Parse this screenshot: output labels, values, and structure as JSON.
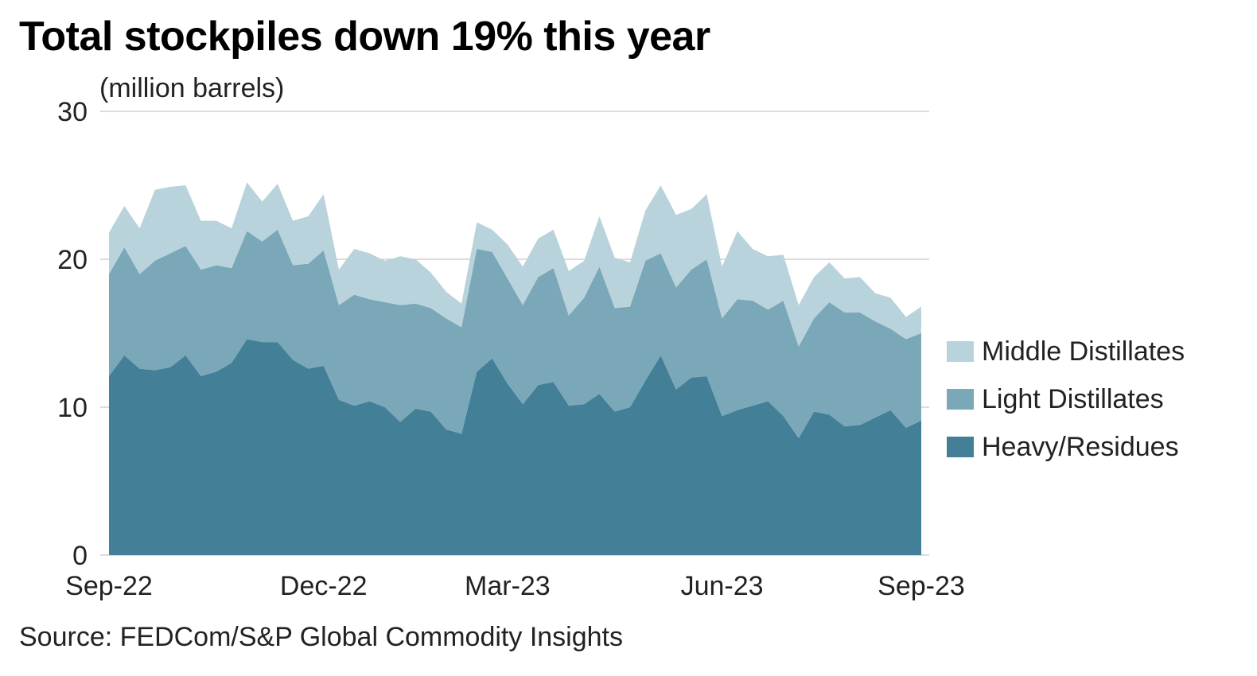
{
  "title": "Total stockpiles down 19% this year",
  "unit_label": "(million barrels)",
  "source": "Source: FEDCom/S&P Global Commodity Insights",
  "colors": {
    "heavy": "#437f96",
    "light": "#7aa8b8",
    "middle": "#b9d3dc",
    "grid": "#d0d0d0"
  },
  "chart_data": {
    "type": "area",
    "stacked": true,
    "title": "Total stockpiles down 19% this year",
    "ylabel": "(million barrels)",
    "ylim": [
      0,
      30
    ],
    "yticks": [
      0,
      10,
      20,
      30
    ],
    "xtick_labels": [
      {
        "label": "Sep-22",
        "index": 0
      },
      {
        "label": "Dec-22",
        "index": 14
      },
      {
        "label": "Mar-23",
        "index": 26
      },
      {
        "label": "Jun-23",
        "index": 40
      },
      {
        "label": "Sep-23",
        "index": 53
      }
    ],
    "legend_position": "right",
    "series": [
      {
        "name": "Heavy/Residues",
        "key": "heavy",
        "values": [
          12.1,
          13.5,
          12.6,
          12.5,
          12.7,
          13.5,
          12.1,
          12.4,
          13.0,
          14.6,
          14.4,
          14.4,
          13.2,
          12.6,
          12.8,
          10.5,
          10.1,
          10.4,
          10.0,
          9.0,
          9.9,
          9.7,
          8.5,
          8.2,
          12.4,
          13.3,
          11.6,
          10.2,
          11.5,
          11.7,
          10.1,
          10.2,
          10.9,
          9.7,
          10.0,
          11.8,
          13.5,
          11.2,
          12.0,
          12.1,
          9.4,
          9.8,
          10.1,
          10.4,
          9.4,
          7.9,
          9.7,
          9.5,
          8.7,
          8.8,
          9.3,
          9.8,
          8.6,
          9.1
        ]
      },
      {
        "name": "Light Distillates",
        "key": "light",
        "values": [
          6.9,
          7.3,
          6.4,
          7.4,
          7.7,
          7.4,
          7.2,
          7.2,
          6.4,
          7.3,
          6.8,
          7.6,
          6.4,
          7.1,
          7.8,
          6.4,
          7.5,
          6.9,
          7.1,
          7.9,
          7.1,
          7.0,
          7.5,
          7.2,
          8.3,
          7.2,
          7.1,
          6.7,
          7.3,
          7.7,
          6.1,
          7.2,
          8.6,
          7.0,
          6.8,
          8.1,
          6.9,
          6.9,
          7.3,
          7.9,
          6.6,
          7.5,
          7.1,
          6.2,
          7.8,
          6.2,
          6.3,
          7.6,
          7.7,
          7.6,
          6.5,
          5.5,
          6.0,
          5.9
        ]
      },
      {
        "name": "Middle Distillates",
        "key": "middle",
        "values": [
          2.8,
          2.8,
          3.1,
          4.8,
          4.5,
          4.1,
          3.3,
          3.0,
          2.7,
          3.3,
          2.7,
          3.1,
          3.0,
          3.2,
          3.8,
          2.4,
          3.1,
          3.1,
          2.8,
          3.3,
          3.0,
          2.4,
          1.8,
          1.6,
          1.8,
          1.5,
          2.3,
          2.6,
          2.6,
          2.6,
          3.0,
          2.5,
          3.4,
          3.4,
          3.0,
          3.4,
          4.6,
          4.9,
          4.1,
          4.4,
          3.5,
          4.6,
          3.5,
          3.6,
          3.1,
          2.8,
          2.8,
          2.7,
          2.3,
          2.4,
          1.9,
          2.1,
          1.5,
          1.8
        ]
      }
    ],
    "legend_entries": [
      "Middle Distillates",
      "Light Distillates",
      "Heavy/Residues"
    ]
  }
}
